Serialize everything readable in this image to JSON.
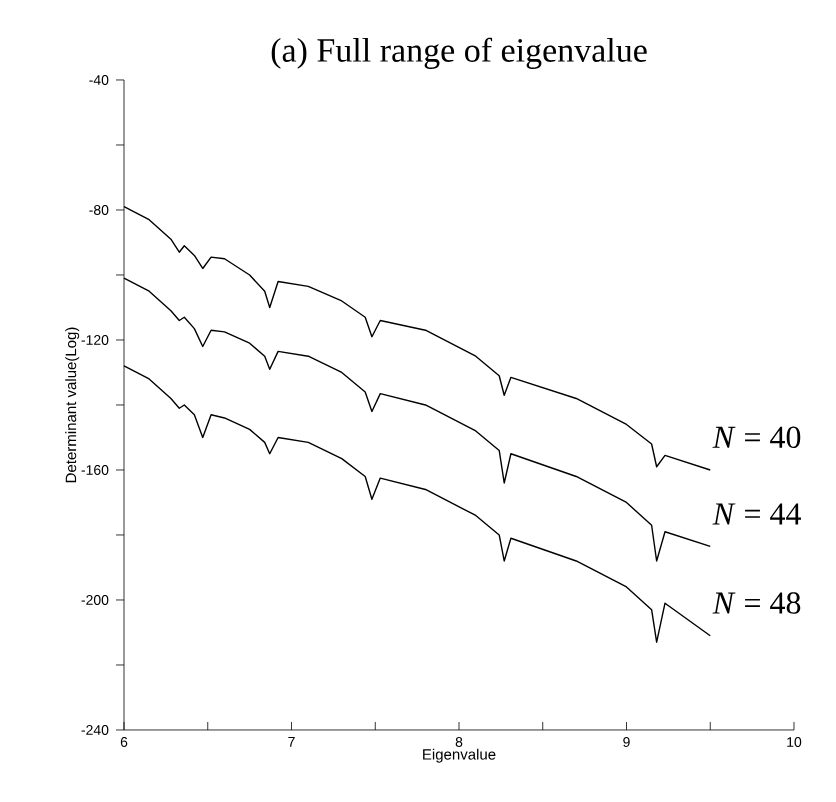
{
  "chart_data": {
    "type": "line",
    "title": "(a) Full range of eigenvalue",
    "xlabel": "Eigenvalue",
    "ylabel": "Determinant value(Log)",
    "xlim": [
      6,
      10
    ],
    "ylim": [
      -240,
      -40
    ],
    "xticks": [
      6,
      {
        "value": 6.5,
        "label": null
      },
      7,
      {
        "value": 7.5,
        "label": null
      },
      8,
      {
        "value": 8.5,
        "label": null
      },
      9,
      {
        "value": 9.5,
        "label": null
      },
      10
    ],
    "yticks": [
      -240,
      {
        "value": -220,
        "label": null
      },
      -200,
      {
        "value": -180,
        "label": null
      },
      -160,
      {
        "value": -140,
        "label": null
      },
      -120,
      {
        "value": -100,
        "label": null
      },
      -80,
      {
        "value": -60,
        "label": null
      },
      -40
    ],
    "line_style": "solid",
    "x": [
      6,
      6.15,
      6.28,
      6.33,
      6.36,
      6.42,
      6.47,
      6.52,
      6.6,
      6.75,
      6.84,
      6.87,
      6.92,
      7.1,
      7.3,
      7.44,
      7.48,
      7.53,
      7.8,
      8.1,
      8.24,
      8.27,
      8.31,
      8.7,
      9.0,
      9.15,
      9.18,
      9.23,
      9.5
    ],
    "series": [
      {
        "name": "*N* = 40",
        "color": "#000000",
        "values": [
          -79,
          -83,
          -89,
          -93,
          -91,
          -94,
          -98,
          -94.5,
          -95,
          -100,
          -105,
          -110,
          -102,
          -103.5,
          -108,
          -113,
          -119,
          -114,
          -117,
          -125,
          -131,
          -137,
          -131.5,
          -138,
          -146,
          -152,
          -159,
          -155.5,
          -160
        ]
      },
      {
        "name": "*N* = 44",
        "color": "#000000",
        "values": [
          -101,
          -105,
          -111,
          -114,
          -113,
          -116.5,
          -122,
          -117,
          -117.5,
          -121,
          -125,
          -129,
          -123.5,
          -125,
          -130,
          -136,
          -142,
          -136.5,
          -140,
          -148,
          -154,
          -164,
          -155,
          -162,
          -170,
          -177,
          -188,
          -179,
          -183.5
        ]
      },
      {
        "name": "*N* = 48",
        "color": "#000000",
        "values": [
          -128,
          -132,
          -138,
          -141,
          -140,
          -143,
          -150,
          -143,
          -144,
          -147.5,
          -151.5,
          -155,
          -150,
          -151.5,
          -156.5,
          -162,
          -169,
          -162.5,
          -166,
          -174,
          -180,
          -188,
          -181,
          -188,
          -196,
          -203,
          -213,
          -201,
          -211
        ]
      }
    ]
  }
}
